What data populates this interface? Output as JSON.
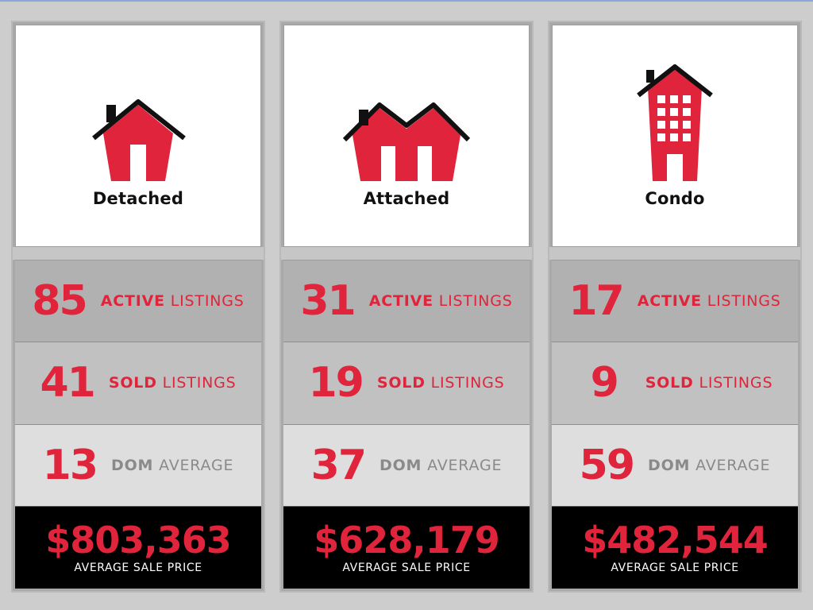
{
  "colors": {
    "accent": "#e0243b",
    "roof": "#111111",
    "panel_bg": "#ffffff",
    "price_bg": "#000000"
  },
  "cards": [
    {
      "type": "Detached",
      "icon": "detached-house-icon",
      "active": "85",
      "sold": "41",
      "dom": "13",
      "price": "$803,363"
    },
    {
      "type": "Attached",
      "icon": "attached-house-icon",
      "active": "31",
      "sold": "19",
      "dom": "37",
      "price": "$628,179"
    },
    {
      "type": "Condo",
      "icon": "condo-building-icon",
      "active": "17",
      "sold": "9",
      "dom": "59",
      "price": "$482,544"
    }
  ],
  "labels": {
    "active_strong": "ACTIVE",
    "active_rest": "LISTINGS",
    "sold_strong": "SOLD",
    "sold_rest": "LISTINGS",
    "dom_strong": "DOM",
    "dom_rest": "AVERAGE",
    "price_caption": "AVERAGE SALE PRICE"
  }
}
